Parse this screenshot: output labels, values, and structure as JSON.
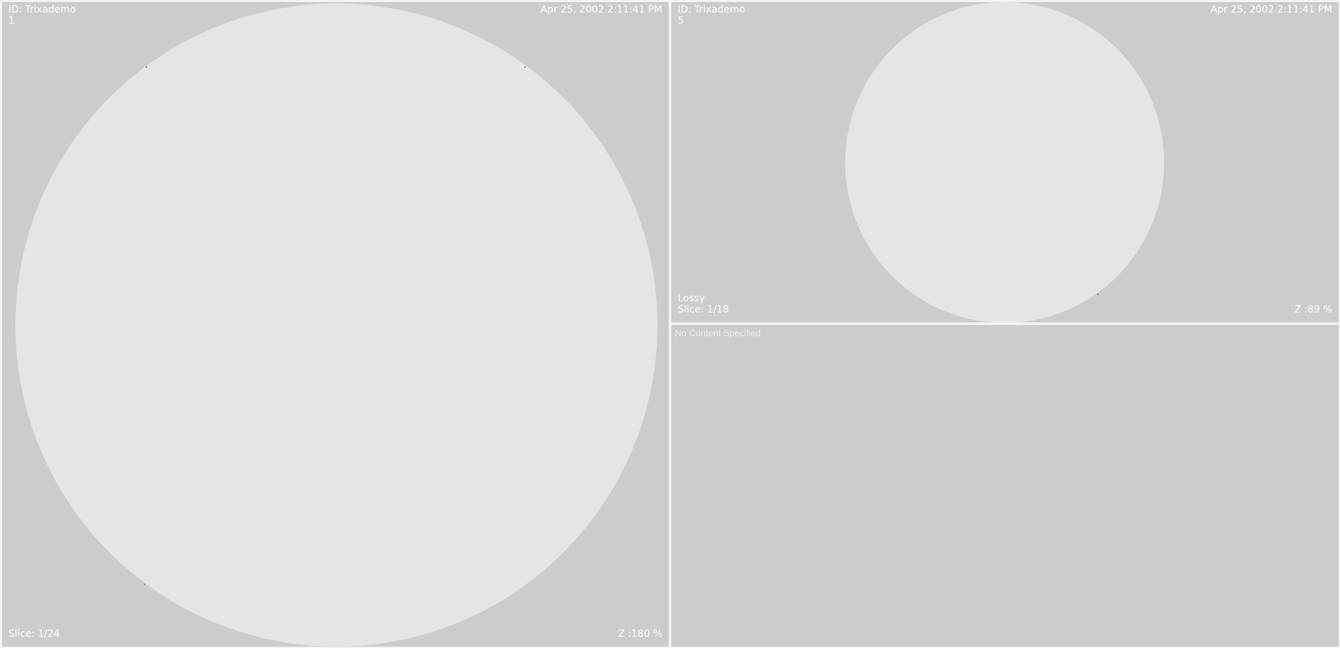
{
  "viewports": {
    "left": {
      "patient_id": "ID: Trixademo",
      "series_number": "1",
      "datetime": "Apr 25, 2002 2:11:41 PM",
      "slice": "Slice: 1/24",
      "zoom": "Z :180 %"
    },
    "top_right": {
      "patient_id": "ID: Trixademo",
      "series_number": "5",
      "datetime": "Apr 25, 2002 2:11:41 PM",
      "compression": "Lossy",
      "slice": "Slice: 1/18",
      "zoom": "Z :89 %"
    },
    "bottom_right": {
      "message": "No Content Specified"
    }
  },
  "colors": {
    "viewport_background": "#cccccc",
    "image_disc": "#e5e5e5",
    "overlay_text": "#ffffff"
  }
}
